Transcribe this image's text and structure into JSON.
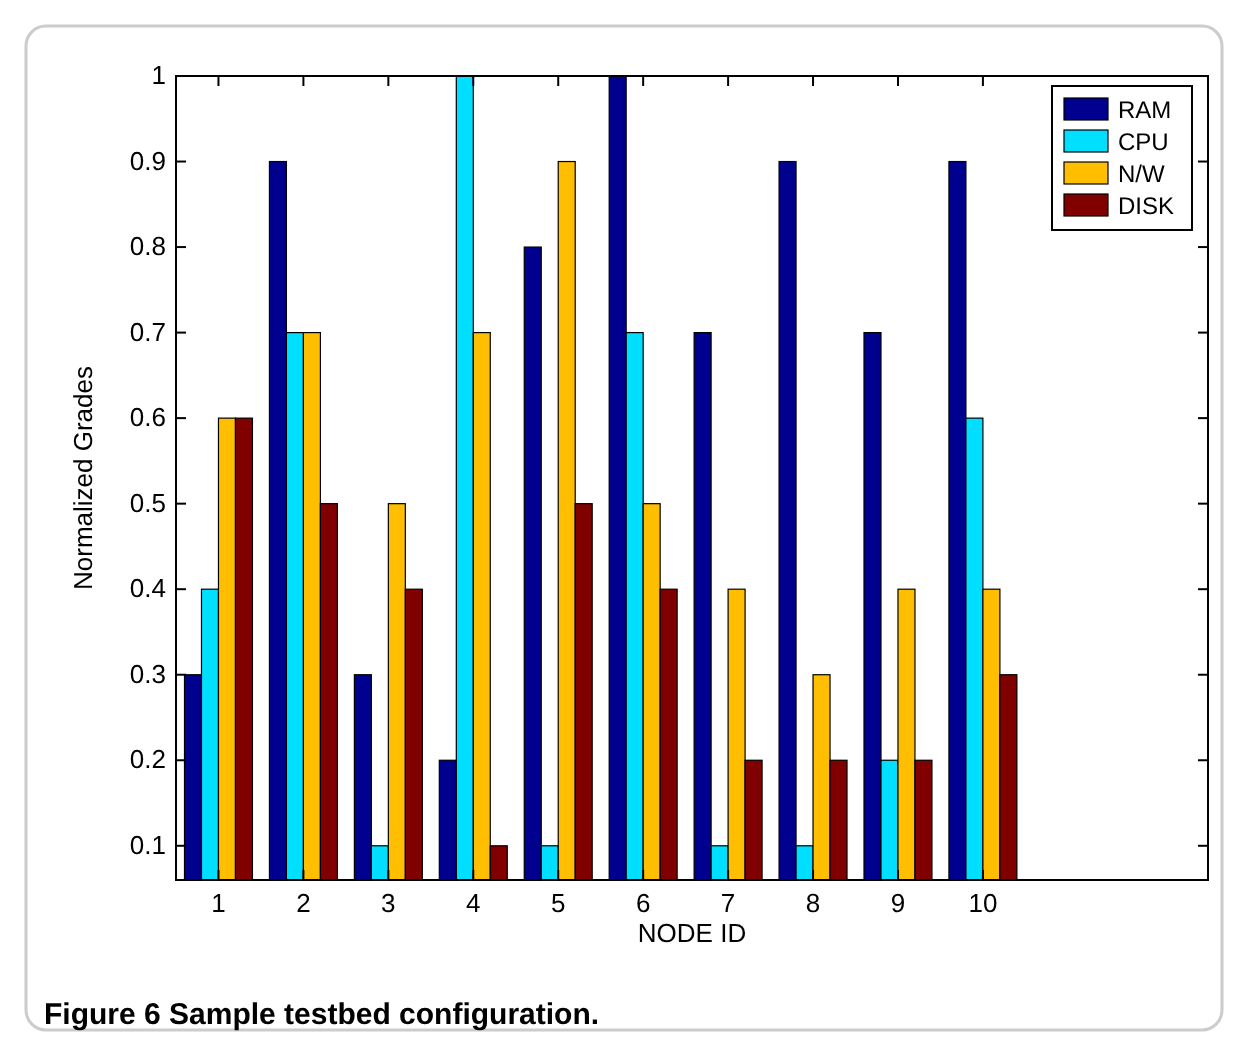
{
  "chart_data": {
    "type": "bar",
    "xlabel": "NODE ID",
    "ylabel": "Normalized Grades",
    "x": [
      1,
      2,
      3,
      4,
      5,
      6,
      7,
      8,
      9,
      10
    ],
    "series": [
      {
        "name": "RAM",
        "color": "#00008f",
        "values": [
          0.3,
          0.9,
          0.3,
          0.2,
          0.8,
          1.0,
          0.7,
          0.9,
          0.7,
          0.9
        ]
      },
      {
        "name": "CPU",
        "color": "#00dfff",
        "values": [
          0.4,
          0.7,
          0.1,
          1.0,
          0.1,
          0.7,
          0.1,
          0.1,
          0.2,
          0.6
        ]
      },
      {
        "name": "N/W",
        "color": "#ffbf00",
        "values": [
          0.6,
          0.7,
          0.5,
          0.7,
          0.9,
          0.5,
          0.4,
          0.3,
          0.4,
          0.4
        ]
      },
      {
        "name": "DISK",
        "color": "#800000",
        "values": [
          0.6,
          0.5,
          0.4,
          0.1,
          0.5,
          0.4,
          0.2,
          0.2,
          0.2,
          0.3
        ]
      }
    ],
    "xlim": [
      0.5,
      12.65
    ],
    "xticks": [
      1,
      2,
      3,
      4,
      5,
      6,
      7,
      8,
      9,
      10
    ],
    "ylim": [
      0.06,
      1
    ],
    "yticks": [
      0.1,
      0.2,
      0.3,
      0.4,
      0.5,
      0.6,
      0.7,
      0.8,
      0.9,
      1
    ],
    "grid": false,
    "legend": "top right",
    "annotations": [
      "Figure 6 Sample testbed configuration."
    ]
  }
}
